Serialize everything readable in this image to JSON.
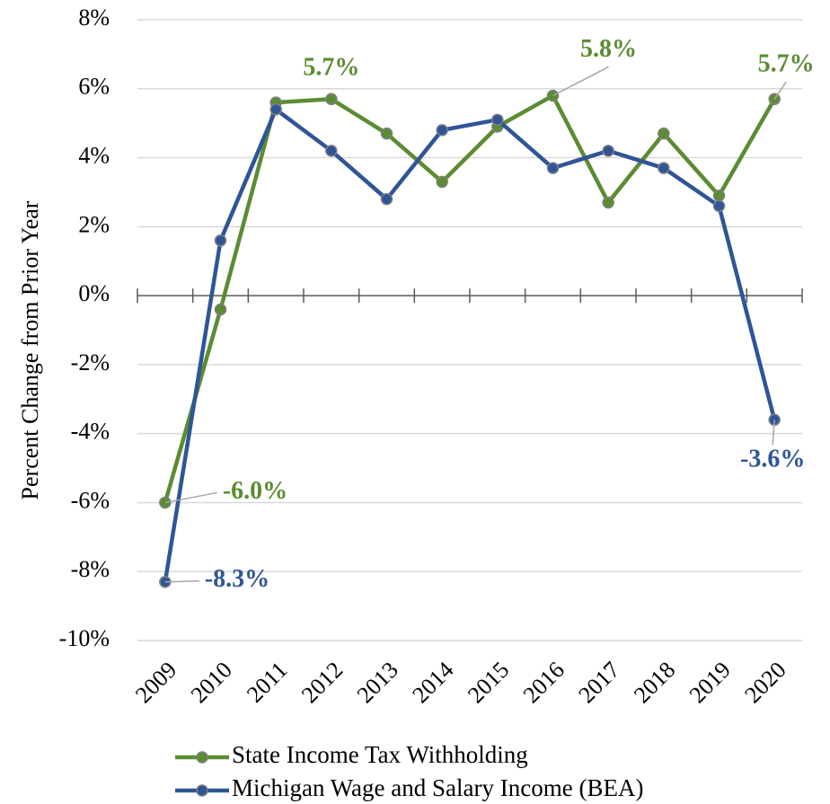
{
  "chart_data": {
    "type": "line",
    "y_label": "Percent Change from Prior Year",
    "categories": [
      "2009",
      "2010",
      "2011",
      "2012",
      "2013",
      "2014",
      "2015",
      "2016",
      "2017",
      "2018",
      "2019",
      "2020"
    ],
    "series": [
      {
        "name": "State Income Tax Withholding",
        "color": "#5b8c32",
        "values": [
          -6.0,
          -0.4,
          5.6,
          5.7,
          4.7,
          3.3,
          4.9,
          5.8,
          2.7,
          4.7,
          2.9,
          5.7
        ],
        "value_labels": [
          "-6.0%",
          null,
          null,
          "5.7%",
          null,
          null,
          null,
          "5.8%",
          null,
          null,
          null,
          "5.7%"
        ]
      },
      {
        "name": "Michigan Wage and Salary Income (BEA)",
        "color": "#2f5597",
        "values": [
          -8.3,
          1.6,
          5.4,
          4.2,
          2.8,
          4.8,
          5.1,
          3.7,
          4.2,
          3.7,
          2.6,
          -3.6
        ],
        "value_labels": [
          "-8.3%",
          null,
          null,
          null,
          null,
          null,
          null,
          null,
          null,
          null,
          null,
          "-3.6%"
        ]
      }
    ],
    "ylim": [
      -10,
      8
    ],
    "yticks": [
      {
        "value": -10,
        "label": "-10%"
      },
      {
        "value": -8,
        "label": "-8%"
      },
      {
        "value": -6,
        "label": "-6%"
      },
      {
        "value": -4,
        "label": "-4%"
      },
      {
        "value": -2,
        "label": "-2%"
      },
      {
        "value": 0,
        "label": "0%"
      },
      {
        "value": 2,
        "label": "2%"
      },
      {
        "value": 4,
        "label": "4%"
      },
      {
        "value": 6,
        "label": "6%"
      },
      {
        "value": 8,
        "label": "8%"
      }
    ],
    "grid": true,
    "legend": "bottom"
  }
}
